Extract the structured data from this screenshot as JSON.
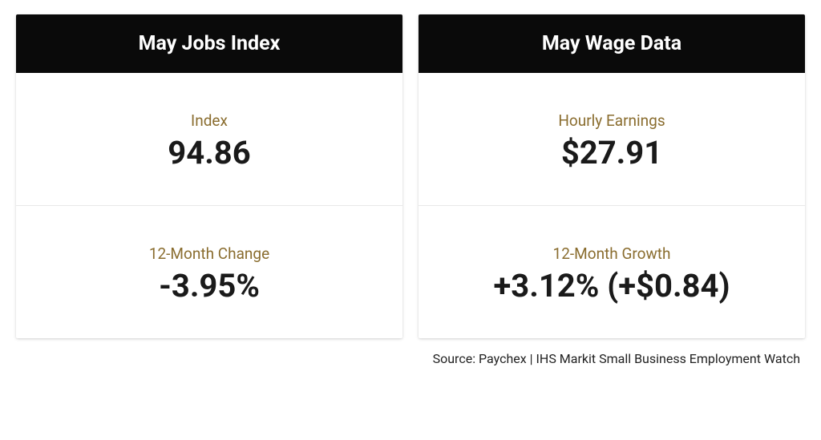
{
  "layout": {
    "card_shadow": "0 1px 4px rgba(0,0,0,0.12), 0 1px 2px rgba(0,0,0,0.08)",
    "divider_color": "#e8e8e8",
    "label_color": "#8a6d2f",
    "value_color": "#1a1a1a",
    "header_bg": "#0a0a0a",
    "header_fg": "#ffffff",
    "background_color": "#ffffff",
    "header_fontsize": 25,
    "label_fontsize": 19,
    "value_fontsize": 40,
    "source_fontsize": 16
  },
  "cards": {
    "jobs": {
      "title": "May Jobs Index",
      "metric1": {
        "label": "Index",
        "value": "94.86"
      },
      "metric2": {
        "label": "12-Month Change",
        "value": "-3.95%"
      }
    },
    "wage": {
      "title": "May Wage Data",
      "metric1": {
        "label": "Hourly Earnings",
        "value": "$27.91"
      },
      "metric2": {
        "label": "12-Month Growth",
        "value": "+3.12% (+$0.84)"
      }
    }
  },
  "source": "Source: Paychex | IHS Markit Small Business Employment Watch"
}
